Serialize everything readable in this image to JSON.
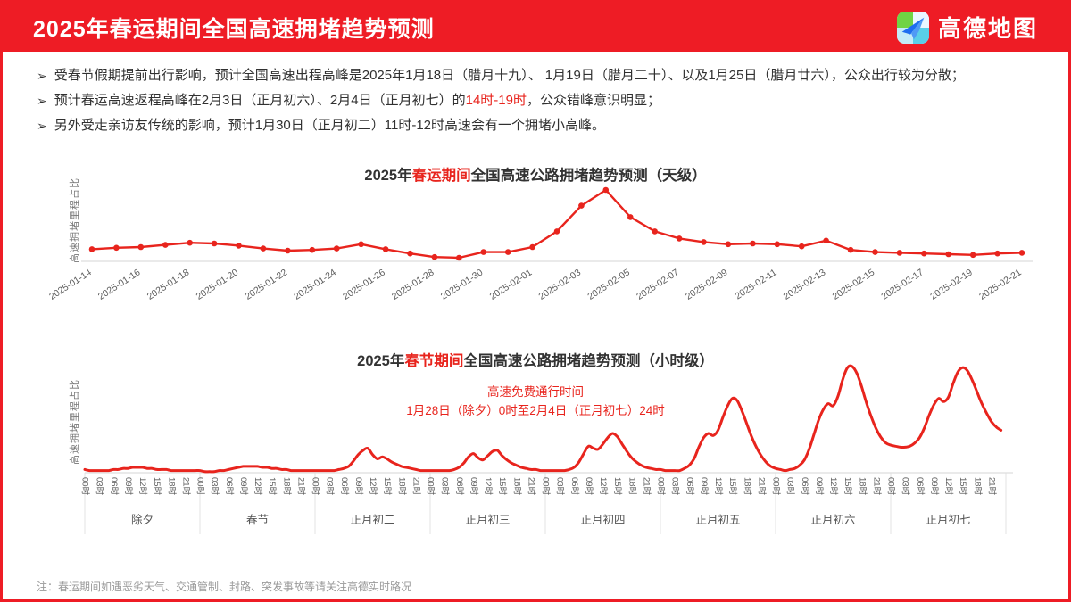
{
  "colors": {
    "accent": "#ee1c25",
    "chart_line": "#e8241d",
    "baseline": "#dedede",
    "tick_text": "#5c5c5c"
  },
  "header": {
    "title": "2025年春运期间全国高速拥堵趋势预测",
    "brand": "高德地图"
  },
  "bullets": [
    {
      "parts": [
        {
          "text": "受春节假期提前出行影响，预计全国高速出程高峰是2025年1月18日（腊月十九）、 1月19日（腊月二十）、以及1月25日（腊月廿六），公众出行较为分散；",
          "red": false
        }
      ]
    },
    {
      "parts": [
        {
          "text": "预计春运高速返程高峰在2月3日（正月初六）、2月4日（正月初七）的",
          "red": false
        },
        {
          "text": "14时-19时",
          "red": true
        },
        {
          "text": "，公众错峰意识明显；",
          "red": false
        }
      ]
    },
    {
      "parts": [
        {
          "text": "另外受走亲访友传统的影响，预计1月30日（正月初二）11时-12时高速会有一个拥堵小高峰。",
          "red": false
        }
      ]
    }
  ],
  "note": "注：春运期间如遇恶劣天气、交通管制、封路、突发事故等请关注高德实时路况",
  "chart_data": [
    {
      "id": "daily",
      "type": "line",
      "title_parts": {
        "pre": "2025年",
        "highlight": "春运期间",
        "post": "全国高速公路拥堵趋势预测（天级）"
      },
      "ylabel": "高速拥堵里程占比",
      "ylim": [
        0,
        1
      ],
      "grid": false,
      "marker": "dot",
      "tick_every": 2,
      "x": [
        "2025-01-14",
        "2025-01-15",
        "2025-01-16",
        "2025-01-17",
        "2025-01-18",
        "2025-01-19",
        "2025-01-20",
        "2025-01-21",
        "2025-01-22",
        "2025-01-23",
        "2025-01-24",
        "2025-01-25",
        "2025-01-26",
        "2025-01-27",
        "2025-01-28",
        "2025-01-29",
        "2025-01-30",
        "2025-01-31",
        "2025-02-01",
        "2025-02-02",
        "2025-02-03",
        "2025-02-04",
        "2025-02-05",
        "2025-02-06",
        "2025-02-07",
        "2025-02-08",
        "2025-02-09",
        "2025-02-10",
        "2025-02-11",
        "2025-02-12",
        "2025-02-13",
        "2025-02-14",
        "2025-02-15",
        "2025-02-16",
        "2025-02-17",
        "2025-02-18",
        "2025-02-19",
        "2025-02-20",
        "2025-02-21"
      ],
      "values": [
        0.17,
        0.19,
        0.2,
        0.23,
        0.26,
        0.25,
        0.22,
        0.18,
        0.15,
        0.16,
        0.18,
        0.24,
        0.17,
        0.11,
        0.06,
        0.05,
        0.13,
        0.13,
        0.2,
        0.42,
        0.78,
        1.0,
        0.62,
        0.42,
        0.32,
        0.27,
        0.24,
        0.25,
        0.24,
        0.21,
        0.29,
        0.16,
        0.13,
        0.12,
        0.11,
        0.1,
        0.09,
        0.11,
        0.12
      ]
    },
    {
      "id": "hourly",
      "type": "line",
      "title_parts": {
        "pre": "2025年",
        "highlight": "春节期间",
        "post": "全国高速公路拥堵趋势预测（小时级）"
      },
      "ylabel": "高速拥堵里程占比",
      "ylim": [
        0,
        1
      ],
      "annotation": {
        "line1": "高速免费通行时间",
        "line2": "1月28日（除夕）0时至2月4日（正月初七）24时"
      },
      "hour_ticks": [
        "00时",
        "03时",
        "06时",
        "09时",
        "12时",
        "15时",
        "18时",
        "21时"
      ],
      "days": [
        {
          "label": "除夕",
          "hourly": [
            0.03,
            0.02,
            0.02,
            0.02,
            0.02,
            0.02,
            0.03,
            0.03,
            0.04,
            0.04,
            0.05,
            0.05,
            0.05,
            0.04,
            0.04,
            0.03,
            0.03,
            0.03,
            0.02,
            0.02,
            0.02,
            0.02,
            0.02,
            0.02
          ]
        },
        {
          "label": "春节",
          "hourly": [
            0.02,
            0.01,
            0.01,
            0.01,
            0.02,
            0.02,
            0.03,
            0.04,
            0.05,
            0.06,
            0.06,
            0.06,
            0.06,
            0.05,
            0.05,
            0.04,
            0.04,
            0.03,
            0.03,
            0.02,
            0.02,
            0.02,
            0.02,
            0.02
          ]
        },
        {
          "label": "正月初二",
          "hourly": [
            0.02,
            0.02,
            0.02,
            0.02,
            0.02,
            0.03,
            0.04,
            0.06,
            0.11,
            0.17,
            0.21,
            0.23,
            0.17,
            0.13,
            0.15,
            0.13,
            0.1,
            0.08,
            0.06,
            0.05,
            0.04,
            0.03,
            0.02,
            0.02
          ]
        },
        {
          "label": "正月初三",
          "hourly": [
            0.02,
            0.02,
            0.02,
            0.02,
            0.02,
            0.03,
            0.05,
            0.09,
            0.15,
            0.18,
            0.14,
            0.12,
            0.16,
            0.2,
            0.21,
            0.16,
            0.12,
            0.09,
            0.07,
            0.05,
            0.04,
            0.03,
            0.03,
            0.02
          ]
        },
        {
          "label": "正月初四",
          "hourly": [
            0.02,
            0.02,
            0.02,
            0.02,
            0.02,
            0.03,
            0.05,
            0.1,
            0.18,
            0.25,
            0.23,
            0.22,
            0.27,
            0.33,
            0.37,
            0.34,
            0.27,
            0.2,
            0.14,
            0.1,
            0.07,
            0.05,
            0.04,
            0.03
          ]
        },
        {
          "label": "正月初五",
          "hourly": [
            0.03,
            0.02,
            0.02,
            0.02,
            0.02,
            0.04,
            0.07,
            0.13,
            0.24,
            0.33,
            0.37,
            0.35,
            0.4,
            0.52,
            0.63,
            0.7,
            0.68,
            0.58,
            0.46,
            0.34,
            0.24,
            0.16,
            0.1,
            0.06
          ]
        },
        {
          "label": "正月初六",
          "hourly": [
            0.04,
            0.03,
            0.02,
            0.03,
            0.04,
            0.07,
            0.12,
            0.22,
            0.36,
            0.5,
            0.6,
            0.65,
            0.63,
            0.72,
            0.88,
            0.99,
            1.0,
            0.93,
            0.8,
            0.65,
            0.52,
            0.41,
            0.33,
            0.28
          ]
        },
        {
          "label": "正月初七",
          "hourly": [
            0.26,
            0.25,
            0.24,
            0.24,
            0.25,
            0.28,
            0.33,
            0.42,
            0.54,
            0.64,
            0.7,
            0.67,
            0.71,
            0.84,
            0.95,
            0.99,
            0.96,
            0.87,
            0.76,
            0.65,
            0.56,
            0.48,
            0.43,
            0.4
          ]
        }
      ]
    }
  ]
}
